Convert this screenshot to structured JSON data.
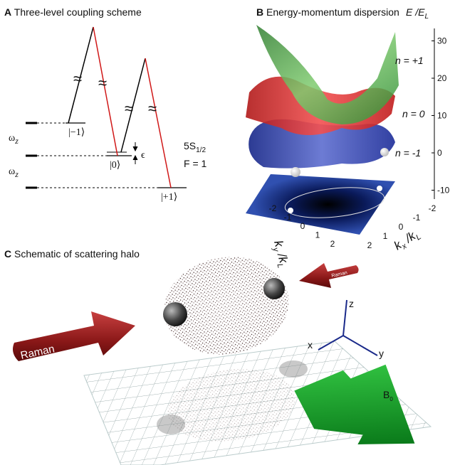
{
  "panel_a": {
    "label": "A",
    "title": "Three-level coupling scheme",
    "levels": [
      "|−1⟩",
      "|0⟩",
      "|+1⟩"
    ],
    "spacing": {
      "symbol": "ω",
      "subscript": "z"
    },
    "detuning": "ϵ",
    "state": {
      "term": "5S",
      "subscript": "1/2",
      "quantum_number": "F = 1"
    }
  },
  "panel_b": {
    "label": "B",
    "title": "Energy-momentum dispersion",
    "axis_label": {
      "symbol": "E",
      "separator": "/",
      "denominator": "E",
      "subscript": "L"
    },
    "yticks": [
      30,
      20,
      10,
      0,
      -10
    ],
    "bands": [
      "n = +1",
      "n = 0",
      "n = -1"
    ],
    "ky_label": {
      "symbol": "k",
      "subscript": "y",
      "separator": "/",
      "denominator": "k",
      "denominator_subscript": "L"
    },
    "kx_label": {
      "symbol": "k",
      "subscript": "x",
      "separator": "/",
      "denominator": "k",
      "denominator_subscript": "L"
    },
    "ky_ticks": [
      -2,
      -1,
      0,
      1,
      2
    ],
    "kx_ticks": [
      -2,
      -1,
      0,
      1,
      2
    ]
  },
  "panel_c": {
    "label": "C",
    "title": "Schematic of scattering halo",
    "raman_labels": [
      "Raman",
      "Raman"
    ],
    "axes": [
      "z",
      "x",
      "y"
    ],
    "field": {
      "symbol": "B",
      "subscript": "0"
    }
  }
}
